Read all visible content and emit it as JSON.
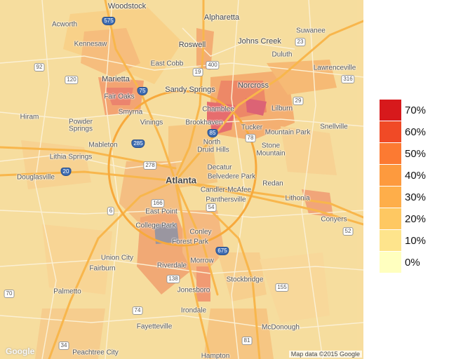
{
  "map": {
    "places": [
      {
        "name": "Woodstock",
        "cls": "mid"
      },
      {
        "name": "Acworth",
        "cls": ""
      },
      {
        "name": "Alpharetta",
        "cls": "mid"
      },
      {
        "name": "Kennesaw",
        "cls": ""
      },
      {
        "name": "Roswell",
        "cls": "mid"
      },
      {
        "name": "Johns Creek",
        "cls": "mid"
      },
      {
        "name": "Suwanee",
        "cls": ""
      },
      {
        "name": "Duluth",
        "cls": ""
      },
      {
        "name": "East Cobb",
        "cls": ""
      },
      {
        "name": "Marietta",
        "cls": "mid"
      },
      {
        "name": "Lawrenceville",
        "cls": ""
      },
      {
        "name": "Norcross",
        "cls": "mid"
      },
      {
        "name": "Sandy Springs",
        "cls": "mid"
      },
      {
        "name": "Fair Oaks",
        "cls": ""
      },
      {
        "name": "Smyrna",
        "cls": ""
      },
      {
        "name": "Chamblee",
        "cls": ""
      },
      {
        "name": "Lilburn",
        "cls": ""
      },
      {
        "name": "Hiram",
        "cls": ""
      },
      {
        "name": "Vinings",
        "cls": ""
      },
      {
        "name": "Brookhaven",
        "cls": ""
      },
      {
        "name": "Snellville",
        "cls": ""
      },
      {
        "name": "Powder",
        "cls": ""
      },
      {
        "name": "Springs",
        "cls": ""
      },
      {
        "name": "Tucker",
        "cls": ""
      },
      {
        "name": "Mountain Park",
        "cls": ""
      },
      {
        "name": "Mableton",
        "cls": ""
      },
      {
        "name": "North",
        "cls": ""
      },
      {
        "name": "Druid Hills",
        "cls": ""
      },
      {
        "name": "Lithia Springs",
        "cls": ""
      },
      {
        "name": "Stone",
        "cls": ""
      },
      {
        "name": "Mountain",
        "cls": ""
      },
      {
        "name": "Decatur",
        "cls": ""
      },
      {
        "name": "Douglasville",
        "cls": ""
      },
      {
        "name": "Atlanta",
        "cls": "major"
      },
      {
        "name": "Belvedere Park",
        "cls": ""
      },
      {
        "name": "Redan",
        "cls": ""
      },
      {
        "name": "Candler-McAfee",
        "cls": ""
      },
      {
        "name": "Panthersville",
        "cls": ""
      },
      {
        "name": "Lithonia",
        "cls": ""
      },
      {
        "name": "East Point",
        "cls": ""
      },
      {
        "name": "College Park",
        "cls": ""
      },
      {
        "name": "Conyers",
        "cls": ""
      },
      {
        "name": "Conley",
        "cls": ""
      },
      {
        "name": "Forest Park",
        "cls": ""
      },
      {
        "name": "Union City",
        "cls": ""
      },
      {
        "name": "Morrow",
        "cls": ""
      },
      {
        "name": "Fairburn",
        "cls": ""
      },
      {
        "name": "Riverdale",
        "cls": ""
      },
      {
        "name": "Stockbridge",
        "cls": ""
      },
      {
        "name": "Palmetto",
        "cls": ""
      },
      {
        "name": "Jonesboro",
        "cls": ""
      },
      {
        "name": "Irondale",
        "cls": ""
      },
      {
        "name": "McDonough",
        "cls": ""
      },
      {
        "name": "Fayetteville",
        "cls": ""
      },
      {
        "name": "Peachtree City",
        "cls": ""
      },
      {
        "name": "Hampton",
        "cls": ""
      }
    ],
    "shields": [
      {
        "label": "75",
        "type": "interstate"
      },
      {
        "label": "575",
        "type": "interstate"
      },
      {
        "label": "92",
        "type": "state"
      },
      {
        "label": "120",
        "type": "state"
      },
      {
        "label": "19",
        "type": "state"
      },
      {
        "label": "400",
        "type": "state"
      },
      {
        "label": "23",
        "type": "state"
      },
      {
        "label": "85",
        "type": "interstate"
      },
      {
        "label": "316",
        "type": "state"
      },
      {
        "label": "29",
        "type": "state"
      },
      {
        "label": "278",
        "type": "state"
      },
      {
        "label": "285",
        "type": "interstate"
      },
      {
        "label": "78",
        "type": "state"
      },
      {
        "label": "20",
        "type": "interstate"
      },
      {
        "label": "166",
        "type": "state"
      },
      {
        "label": "54",
        "type": "state"
      },
      {
        "label": "6",
        "type": "state"
      },
      {
        "label": "675",
        "type": "interstate"
      },
      {
        "label": "138",
        "type": "state"
      },
      {
        "label": "155",
        "type": "state"
      },
      {
        "label": "74",
        "type": "state"
      },
      {
        "label": "34",
        "type": "state"
      },
      {
        "label": "81",
        "type": "state"
      },
      {
        "label": "70",
        "type": "state"
      },
      {
        "label": "52",
        "type": "state"
      }
    ],
    "attribution": "Map data ©2015 Google",
    "google_logo": "Google"
  },
  "legend": {
    "items": [
      {
        "label": "70%",
        "color": "#d7191c"
      },
      {
        "label": "60%",
        "color": "#f04a26"
      },
      {
        "label": "50%",
        "color": "#fc7a32"
      },
      {
        "label": "40%",
        "color": "#fd9a3e"
      },
      {
        "label": "30%",
        "color": "#feae4a"
      },
      {
        "label": "20%",
        "color": "#fec862"
      },
      {
        "label": "10%",
        "color": "#fee48c"
      },
      {
        "label": "0%",
        "color": "#ffffbf"
      }
    ]
  }
}
